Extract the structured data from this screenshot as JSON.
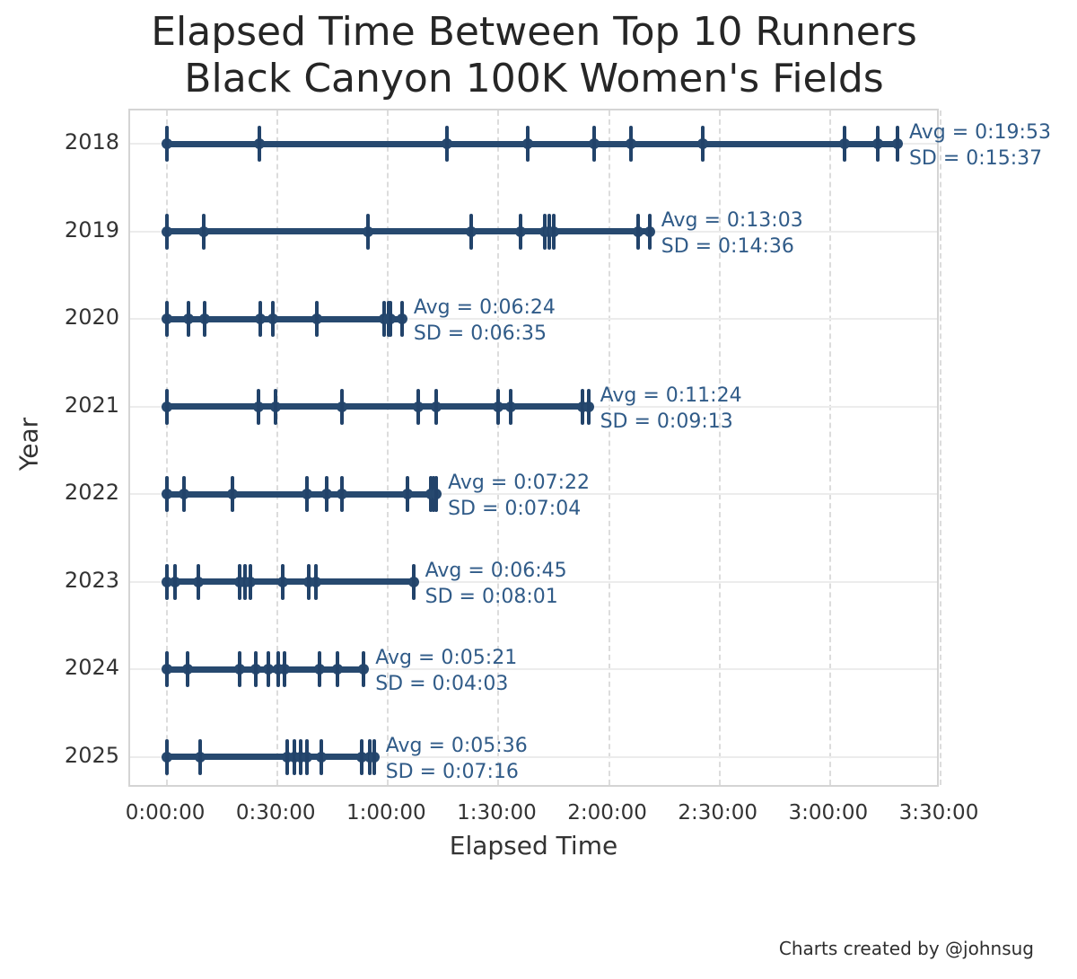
{
  "title": {
    "line1": "Elapsed Time Between Top 10 Runners",
    "line2": "Black Canyon 100K Women's Fields"
  },
  "footer": {
    "credit": "Charts created by @johnsug"
  },
  "colors": {
    "range_line": "#27496f",
    "mark_tick": "#22436a",
    "mark_dot": "#27496f",
    "annotation_text": "#305b88",
    "grid_vertical": "#dcdcdc",
    "grid_horizontal": "#ececec",
    "plot_border": "#d4d4d4",
    "axis_text": "#333333",
    "title_text": "#262626"
  },
  "annotation_format": {
    "avg_prefix": "Avg = ",
    "sd_prefix": "SD = "
  },
  "chart_data": {
    "type": "scatter",
    "title": "Elapsed Time Between Top 10 Runners — Black Canyon 100K Women's Fields",
    "xlabel": "Elapsed Time",
    "ylabel": "Year",
    "x_ticks": [
      "0:00:00",
      "0:30:00",
      "1:00:00",
      "1:30:00",
      "2:00:00",
      "2:30:00",
      "3:00:00",
      "3:30:00"
    ],
    "x_tick_minutes": [
      0,
      30,
      60,
      90,
      120,
      150,
      180,
      210
    ],
    "xlim_minutes": [
      -10,
      210
    ],
    "grid": true,
    "series": [
      {
        "year": "2018",
        "avg": "0:19:53",
        "sd": "0:15:37",
        "marks_minutes": [
          0,
          25,
          76,
          98,
          116,
          126,
          145.5,
          184,
          193,
          198.3
        ]
      },
      {
        "year": "2019",
        "avg": "0:13:03",
        "sd": "0:14:36",
        "marks_minutes": [
          0,
          10,
          54.5,
          82.6,
          96,
          102.5,
          103.8,
          105,
          128,
          131
        ]
      },
      {
        "year": "2020",
        "avg": "0:06:24",
        "sd": "0:06:35",
        "marks_minutes": [
          0,
          5.9,
          10.2,
          25.4,
          28.7,
          40.7,
          58.9,
          60.1,
          60.6,
          63.8
        ]
      },
      {
        "year": "2021",
        "avg": "0:11:24",
        "sd": "0:09:13",
        "marks_minutes": [
          0,
          24.8,
          29.4,
          47.4,
          68.3,
          73.2,
          89.8,
          93.4,
          112.9,
          114.4
        ]
      },
      {
        "year": "2022",
        "avg": "0:07:22",
        "sd": "0:07:04",
        "marks_minutes": [
          0,
          4.6,
          17.7,
          38,
          43.3,
          47.4,
          65.3,
          71.6,
          72.4,
          73.1
        ]
      },
      {
        "year": "2023",
        "avg": "0:06:45",
        "sd": "0:08:01",
        "marks_minutes": [
          0,
          2.1,
          8.6,
          19.8,
          21.2,
          22.6,
          31.4,
          38.5,
          40.5,
          66.9
        ]
      },
      {
        "year": "2024",
        "avg": "0:05:21",
        "sd": "0:04:03",
        "marks_minutes": [
          0,
          5.5,
          19.8,
          24,
          27.6,
          30.2,
          31.9,
          41.3,
          46.3,
          53.4
        ]
      },
      {
        "year": "2025",
        "avg": "0:05:36",
        "sd": "0:07:16",
        "marks_minutes": [
          0,
          9.1,
          32.6,
          34.7,
          36.4,
          38,
          41.8,
          52.9,
          55,
          56.2
        ]
      }
    ]
  }
}
